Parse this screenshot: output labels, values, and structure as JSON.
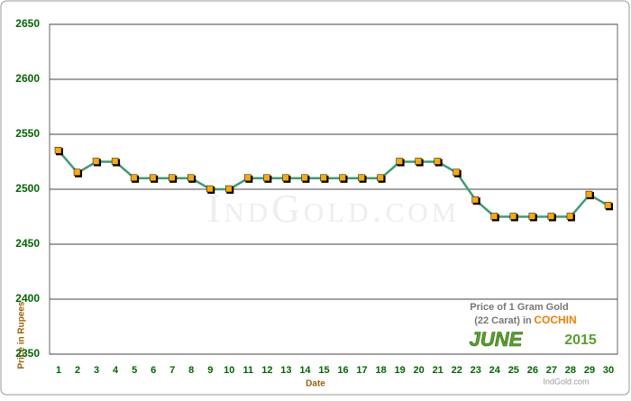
{
  "chart_data": {
    "type": "line",
    "y_label": "Price in Rupees",
    "x_label": "Date",
    "categories": [
      "1",
      "2",
      "3",
      "4",
      "5",
      "6",
      "7",
      "8",
      "9",
      "10",
      "11",
      "12",
      "13",
      "14",
      "15",
      "16",
      "17",
      "18",
      "19",
      "20",
      "21",
      "22",
      "23",
      "24",
      "25",
      "26",
      "27",
      "28",
      "29",
      "30"
    ],
    "series": [
      {
        "color": "#3a9e6e",
        "marker_color": "#ffaa00",
        "values": [
          2535,
          2515,
          2525,
          2525,
          2510,
          2510,
          2510,
          2510,
          2500,
          2500,
          2510,
          2510,
          2510,
          2510,
          2510,
          2510,
          2510,
          2510,
          2525,
          2525,
          2525,
          2515,
          2490,
          2475,
          2475,
          2475,
          2475,
          2475,
          2495,
          2485
        ]
      }
    ],
    "ylim": [
      2350,
      2650
    ],
    "yticks": [
      2350,
      2400,
      2450,
      2500,
      2550,
      2600,
      2650
    ],
    "grid": true,
    "caption": {
      "line1": "Price of 1 Gram Gold",
      "line2": "(22 Carat) in",
      "city": "COCHIN",
      "month": "JUNE",
      "year": "2015",
      "site": "IndGold.com"
    },
    "watermark": "IndGold.com"
  }
}
